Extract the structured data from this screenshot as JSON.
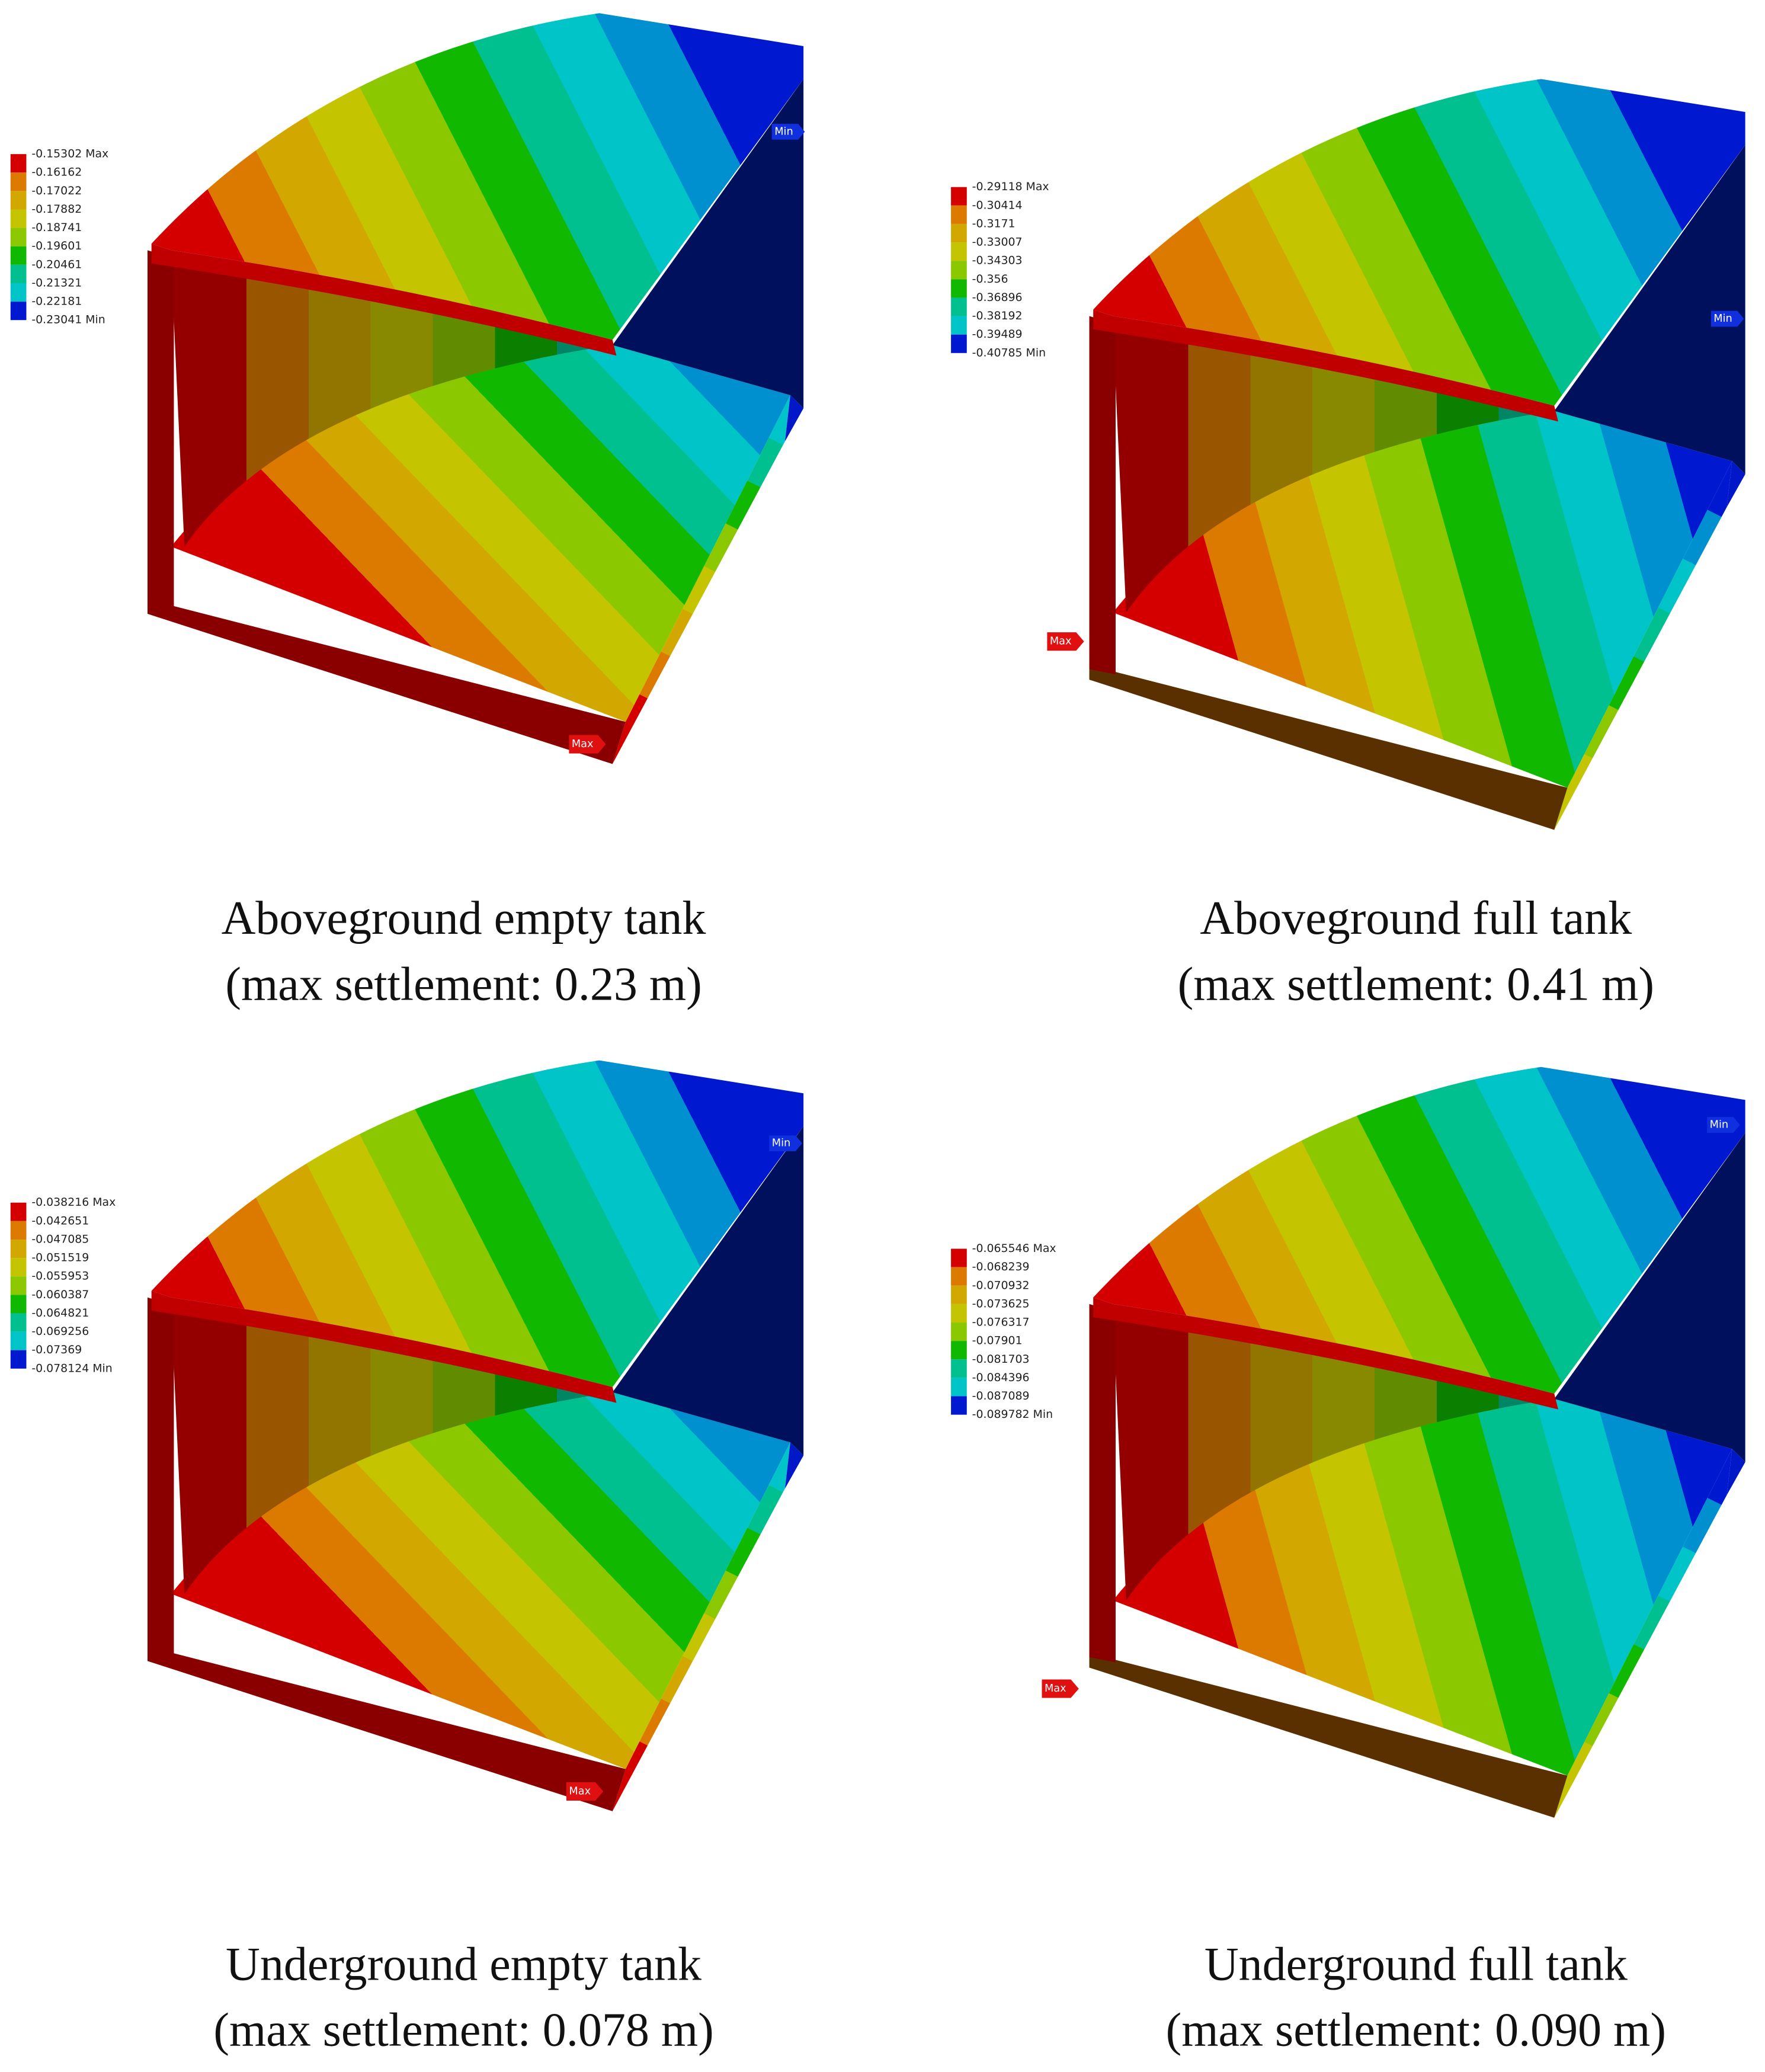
{
  "panels": [
    {
      "legend": [
        "-0.15302 Max",
        "-0.16162",
        "-0.17022",
        "-0.17882",
        "-0.18741",
        "-0.19601",
        "-0.20461",
        "-0.21321",
        "-0.22181",
        "-0.23041 Min"
      ],
      "min_tag": "Min",
      "max_tag": "Max",
      "caption": [
        "Aboveground empty tank",
        "(max settlement: 0.23 m)"
      ]
    },
    {
      "legend": [
        "-0.29118 Max",
        "-0.30414",
        "-0.3171",
        "-0.33007",
        "-0.34303",
        "-0.356",
        "-0.36896",
        "-0.38192",
        "-0.39489",
        "-0.40785 Min"
      ],
      "min_tag": "Min",
      "max_tag": "Max",
      "caption": [
        "Aboveground full tank",
        "(max settlement: 0.41 m)"
      ]
    },
    {
      "legend": [
        "-0.038216 Max",
        "-0.042651",
        "-0.047085",
        "-0.051519",
        "-0.055953",
        "-0.060387",
        "-0.064821",
        "-0.069256",
        "-0.07369",
        "-0.078124 Min"
      ],
      "min_tag": "Min",
      "max_tag": "Max",
      "caption": [
        "Underground empty tank",
        "(max settlement: 0.078 m)"
      ]
    },
    {
      "legend": [
        "-0.065546 Max",
        "-0.068239",
        "-0.070932",
        "-0.073625",
        "-0.076317",
        "-0.07901",
        "-0.081703",
        "-0.084396",
        "-0.087089",
        "-0.089782 Min"
      ],
      "min_tag": "Min",
      "max_tag": "Max",
      "caption": [
        "Underground full tank",
        "(max settlement: 0.090 m)"
      ]
    }
  ]
}
